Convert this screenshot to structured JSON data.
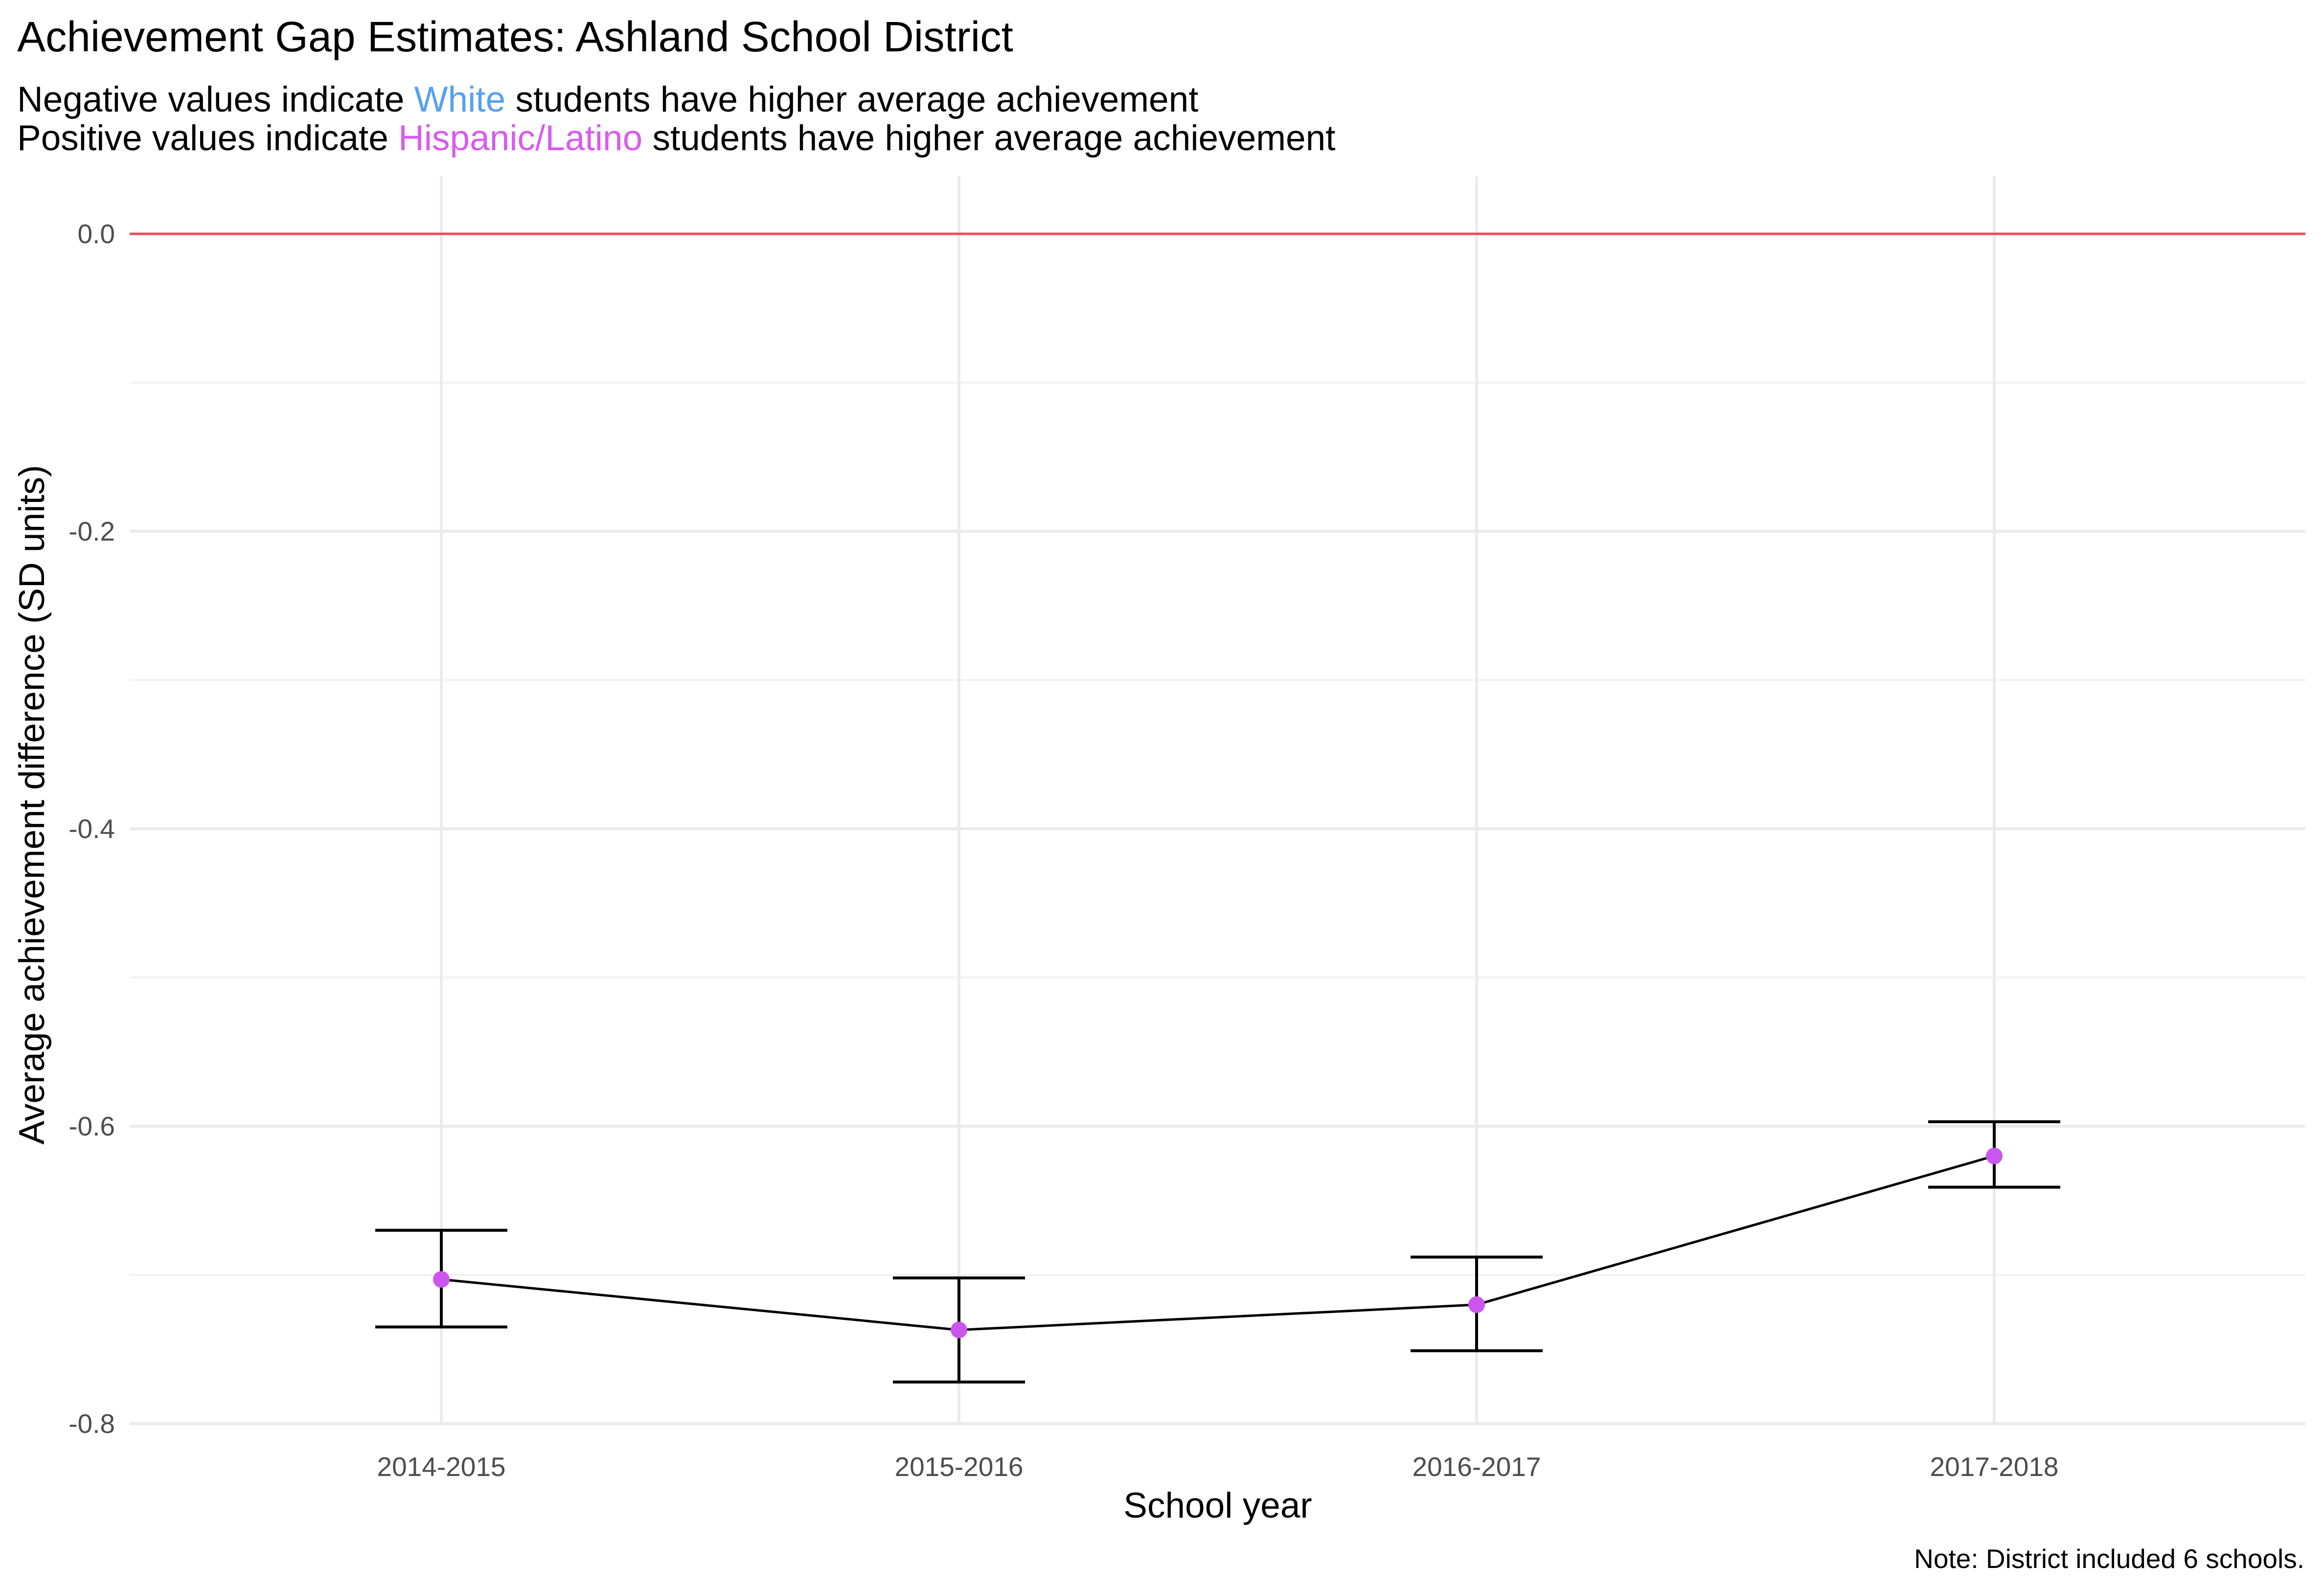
{
  "chart_data": {
    "type": "line",
    "title": "Achievement Gap Estimates: Ashland School District",
    "subtitle": [
      [
        {
          "text": "Negative values indicate ",
          "color": "#000000"
        },
        {
          "text": "White",
          "color": "#56a0f0"
        },
        {
          "text": " students have higher average achievement",
          "color": "#000000"
        }
      ],
      [
        {
          "text": "Positive values indicate ",
          "color": "#000000"
        },
        {
          "text": "Hispanic/Latino",
          "color": "#d95af0"
        },
        {
          "text": " students have higher average achievement",
          "color": "#000000"
        }
      ]
    ],
    "xlabel": "School year",
    "ylabel": "Average achievement difference (SD units)",
    "caption": "Note: District included 6 schools.",
    "categories": [
      "2014-2015",
      "2015-2016",
      "2016-2017",
      "2017-2018"
    ],
    "values": [
      -0.703,
      -0.737,
      -0.72,
      -0.62
    ],
    "lower": [
      -0.735,
      -0.772,
      -0.751,
      -0.641
    ],
    "upper": [
      -0.67,
      -0.702,
      -0.688,
      -0.597
    ],
    "ylim": [
      -0.8,
      0.0
    ],
    "yticks": [
      0.0,
      -0.2,
      -0.4,
      -0.6,
      -0.8
    ],
    "ytick_labels": [
      "0.0",
      "-0.2",
      "-0.4",
      "-0.6",
      "-0.8"
    ],
    "reference_line": {
      "y": 0.0,
      "color": "#e8505b"
    },
    "colors": {
      "point": "#cc55f0",
      "line": "#000000",
      "errorbar": "#000000",
      "white": "#56a0f0",
      "hispanic": "#d95af0"
    },
    "grid": true,
    "legend": "none"
  }
}
